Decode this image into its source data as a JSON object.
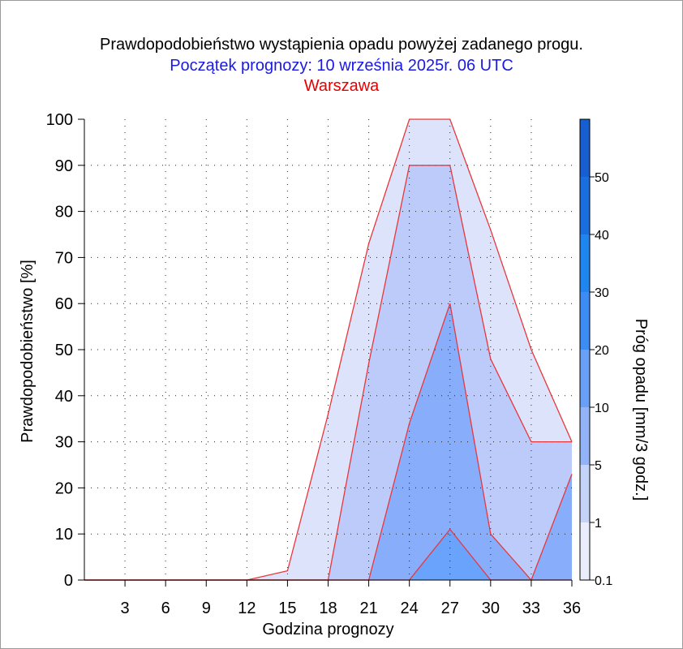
{
  "title": {
    "line1": "Prawdopodobieństwo wystąpienia opadu powyżej zadanego progu.",
    "line2": "Początek prognozy: 10 września 2025r. 06 UTC",
    "line3": "Warszawa",
    "line1_color": "#000000",
    "line2_color": "#1a1ae6",
    "line3_color": "#e60000"
  },
  "chart_data": {
    "type": "area",
    "x": [
      0,
      3,
      6,
      9,
      12,
      15,
      18,
      21,
      24,
      27,
      30,
      33,
      36
    ],
    "xticks": [
      3,
      6,
      9,
      12,
      15,
      18,
      21,
      24,
      27,
      30,
      33,
      36
    ],
    "yticks": [
      0,
      10,
      20,
      30,
      40,
      50,
      60,
      70,
      80,
      90,
      100
    ],
    "xlabel": "Godzina prognozy",
    "ylabel": "Prawdopodobieństwo [%]",
    "xlim": [
      0,
      36
    ],
    "ylim": [
      0,
      100
    ],
    "grid": true,
    "series": [
      {
        "threshold": 0.1,
        "color": "#dde3fb",
        "values": [
          0,
          0,
          0,
          0,
          0,
          2,
          36,
          73,
          100,
          100,
          76,
          50,
          30
        ]
      },
      {
        "threshold": 1,
        "color": "#bccbfa",
        "values": [
          0,
          0,
          0,
          0,
          0,
          0,
          0,
          47,
          90,
          90,
          48,
          30,
          30
        ]
      },
      {
        "threshold": 5,
        "color": "#87adfb",
        "values": [
          0,
          0,
          0,
          0,
          0,
          0,
          0,
          0,
          34,
          60,
          10,
          0,
          23
        ]
      },
      {
        "threshold": 10,
        "color": "#6aa3fc",
        "values": [
          0,
          0,
          0,
          0,
          0,
          0,
          0,
          0,
          0,
          11,
          0,
          0,
          0
        ]
      }
    ],
    "line_color": "#e8373b",
    "colorbar": {
      "label": "Próg opadu [mm/3 godz.]",
      "tick_labels": [
        "0.1",
        "1",
        "5",
        "10",
        "20",
        "30",
        "40",
        "50"
      ],
      "colors": [
        "#eaeefc",
        "#c6d3f9",
        "#93b3f9",
        "#6a9ff7",
        "#3d8cf5",
        "#1f86f0",
        "#1a6ee0",
        "#175ed0",
        "#1248b8"
      ]
    }
  }
}
